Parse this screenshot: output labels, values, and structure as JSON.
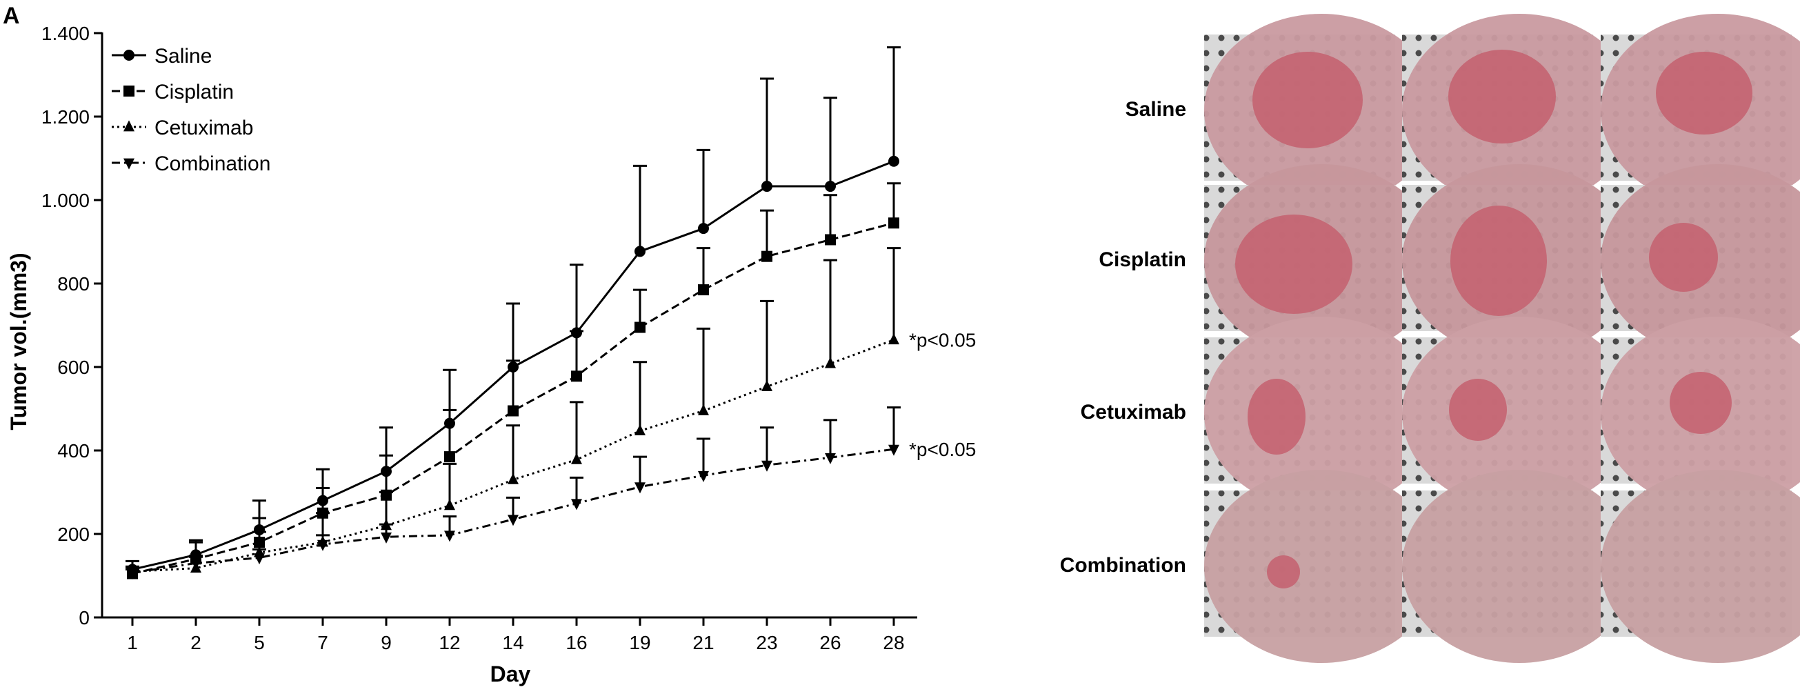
{
  "panel_label": "A",
  "chart_data": {
    "type": "line",
    "title": "",
    "xlabel": "Day",
    "ylabel": "Tumor vol.(mm3)",
    "categories": [
      "1",
      "2",
      "5",
      "7",
      "9",
      "12",
      "14",
      "16",
      "19",
      "21",
      "23",
      "26",
      "28"
    ],
    "ylim": [
      0,
      1400
    ],
    "yticks": [
      0,
      200,
      400,
      600,
      800,
      1000,
      1200,
      1400
    ],
    "ytick_labels": [
      "0",
      "200",
      "400",
      "600",
      "800",
      "1.000",
      "1.200",
      "1.400"
    ],
    "legend_position": "top-left",
    "grid": false,
    "series": [
      {
        "name": "Saline",
        "marker": "circle",
        "dash": "solid",
        "values": [
          115,
          150,
          210,
          280,
          350,
          465,
          600,
          682,
          877,
          932,
          1033,
          1033,
          1093
        ],
        "error": [
          20,
          35,
          70,
          75,
          105,
          128,
          152,
          163,
          205,
          188,
          258,
          212,
          273
        ]
      },
      {
        "name": "Cisplatin",
        "marker": "square",
        "dash": "dashed",
        "values": [
          105,
          140,
          180,
          250,
          293,
          385,
          495,
          578,
          695,
          785,
          865,
          905,
          945
        ],
        "error": [
          15,
          40,
          58,
          60,
          95,
          112,
          120,
          108,
          90,
          100,
          110,
          107,
          95
        ]
      },
      {
        "name": "Cetuximab",
        "marker": "triangle-up",
        "dash": "dotted",
        "values": [
          110,
          118,
          155,
          180,
          220,
          268,
          330,
          378,
          447,
          495,
          553,
          608,
          665
        ],
        "error": [
          12,
          30,
          50,
          70,
          80,
          100,
          130,
          138,
          165,
          197,
          205,
          248,
          220
        ]
      },
      {
        "name": "Combination",
        "marker": "triangle-down",
        "dash": "dashdot",
        "values": [
          107,
          130,
          143,
          175,
          193,
          197,
          235,
          273,
          313,
          340,
          365,
          383,
          403
        ],
        "error": [
          8,
          15,
          20,
          22,
          30,
          45,
          52,
          62,
          72,
          88,
          90,
          90,
          100
        ]
      }
    ],
    "annotations": [
      {
        "text": "*p<0.05",
        "series": "Cetuximab"
      },
      {
        "text": "*p<0.05",
        "series": "Combination"
      }
    ]
  },
  "photo_grid": {
    "rows": [
      "Saline",
      "Cisplatin",
      "Cetuximab",
      "Combination"
    ],
    "columns": 3
  }
}
